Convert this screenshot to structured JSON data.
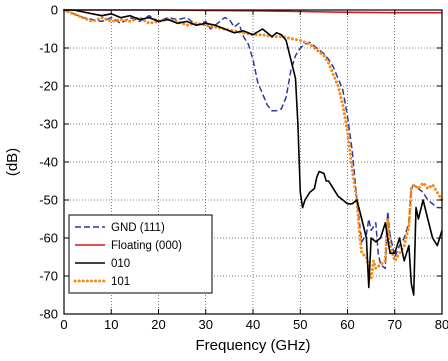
{
  "chart_data": {
    "type": "line",
    "title": "",
    "xlabel": "Frequency (GHz)",
    "ylabel": "(dB)",
    "xlim": [
      0,
      80
    ],
    "ylim": [
      -80,
      0
    ],
    "xticks": [
      0,
      10,
      20,
      30,
      40,
      50,
      60,
      70,
      80
    ],
    "yticks": [
      0,
      -10,
      -20,
      -30,
      -40,
      -50,
      -60,
      -70,
      -80
    ],
    "grid": true,
    "legend_position": "bottom-left",
    "series": [
      {
        "name": "GND (111)",
        "color": "#2b3a9c",
        "style": "dashed",
        "points": [
          [
            0,
            0
          ],
          [
            2,
            -1
          ],
          [
            4,
            -2
          ],
          [
            6,
            -2.5
          ],
          [
            8,
            -3
          ],
          [
            10,
            -2
          ],
          [
            12,
            -3.5
          ],
          [
            14,
            -2
          ],
          [
            16,
            -3
          ],
          [
            18,
            -1.5
          ],
          [
            20,
            -3
          ],
          [
            22,
            -2
          ],
          [
            24,
            -2.5
          ],
          [
            26,
            -2
          ],
          [
            28,
            -4
          ],
          [
            30,
            -3
          ],
          [
            31,
            -5
          ],
          [
            32,
            -4
          ],
          [
            34,
            -2
          ],
          [
            35,
            -2.5
          ],
          [
            36,
            -4.5
          ],
          [
            37,
            -3.5
          ],
          [
            38,
            -7
          ],
          [
            39,
            -9
          ],
          [
            40,
            -13
          ],
          [
            41,
            -19
          ],
          [
            42,
            -22
          ],
          [
            43,
            -25
          ],
          [
            44,
            -26.5
          ],
          [
            45,
            -26.5
          ],
          [
            46,
            -26
          ],
          [
            47,
            -23
          ],
          [
            48,
            -16
          ],
          [
            49,
            -12
          ],
          [
            50,
            -10
          ],
          [
            51,
            -9
          ],
          [
            52,
            -8.5
          ],
          [
            53,
            -9.5
          ],
          [
            54,
            -10.5
          ],
          [
            55,
            -11.5
          ],
          [
            56,
            -13
          ],
          [
            57,
            -15
          ],
          [
            58,
            -18
          ],
          [
            59,
            -21
          ],
          [
            60,
            -28
          ],
          [
            61,
            -37
          ],
          [
            62,
            -50
          ],
          [
            63,
            -61
          ],
          [
            64,
            -59
          ],
          [
            64.5,
            -55
          ],
          [
            65,
            -58
          ],
          [
            66,
            -56
          ],
          [
            66.5,
            -64
          ],
          [
            67,
            -67
          ],
          [
            68,
            -68
          ],
          [
            68.5,
            -53
          ],
          [
            69,
            -59
          ],
          [
            70,
            -65
          ],
          [
            71,
            -62
          ],
          [
            72,
            -60
          ],
          [
            73,
            -56
          ],
          [
            73.5,
            -47
          ],
          [
            74,
            -46
          ],
          [
            75,
            -47
          ],
          [
            76,
            -48
          ],
          [
            77,
            -50
          ],
          [
            78,
            -51
          ],
          [
            79,
            -52
          ],
          [
            80,
            -52
          ]
        ]
      },
      {
        "name": "Floating (000)",
        "color": "#d7191c",
        "style": "solid",
        "points": [
          [
            0,
            0
          ],
          [
            10,
            0
          ],
          [
            20,
            0
          ],
          [
            30,
            -0.1
          ],
          [
            40,
            -0.2
          ],
          [
            50,
            -0.4
          ],
          [
            60,
            -0.6
          ],
          [
            70,
            -0.7
          ],
          [
            80,
            -0.7
          ]
        ]
      },
      {
        "name": "010",
        "color": "#000000",
        "style": "solid",
        "points": [
          [
            0,
            0
          ],
          [
            2,
            0
          ],
          [
            4,
            -0.5
          ],
          [
            6,
            -1
          ],
          [
            8,
            -1.5
          ],
          [
            10,
            -1
          ],
          [
            12,
            -2
          ],
          [
            14,
            -1.5
          ],
          [
            16,
            -2.5
          ],
          [
            18,
            -2
          ],
          [
            20,
            -3
          ],
          [
            22,
            -2.5
          ],
          [
            24,
            -3.5
          ],
          [
            26,
            -3
          ],
          [
            28,
            -4
          ],
          [
            30,
            -3.5
          ],
          [
            32,
            -4
          ],
          [
            34,
            -5
          ],
          [
            36,
            -6
          ],
          [
            38,
            -5.5
          ],
          [
            40,
            -6.5
          ],
          [
            42,
            -5
          ],
          [
            43,
            -6
          ],
          [
            44,
            -7
          ],
          [
            45,
            -6
          ],
          [
            46,
            -6.5
          ],
          [
            47,
            -8
          ],
          [
            48,
            -13
          ],
          [
            49,
            -18
          ],
          [
            49.5,
            -30
          ],
          [
            50,
            -48
          ],
          [
            50.5,
            -52
          ],
          [
            51,
            -50
          ],
          [
            52,
            -48
          ],
          [
            53,
            -47
          ],
          [
            53.5,
            -44
          ],
          [
            54,
            -42.5
          ],
          [
            55,
            -43
          ],
          [
            55.5,
            -45
          ],
          [
            56,
            -45
          ],
          [
            57,
            -47
          ],
          [
            58,
            -49
          ],
          [
            59,
            -50
          ],
          [
            60,
            -51
          ],
          [
            61,
            -51
          ],
          [
            62,
            -50
          ],
          [
            63,
            -55
          ],
          [
            64,
            -60
          ],
          [
            64.5,
            -73
          ],
          [
            65,
            -60
          ],
          [
            66,
            -61
          ],
          [
            67,
            -60
          ],
          [
            68,
            -56
          ],
          [
            69,
            -64
          ],
          [
            70,
            -64
          ],
          [
            71,
            -60
          ],
          [
            72,
            -66
          ],
          [
            73,
            -62
          ],
          [
            73.5,
            -72
          ],
          [
            74,
            -75
          ],
          [
            74.5,
            -52
          ],
          [
            75,
            -55
          ],
          [
            76,
            -50
          ],
          [
            77,
            -55
          ],
          [
            78,
            -60
          ],
          [
            79,
            -62
          ],
          [
            80,
            -58
          ]
        ]
      },
      {
        "name": "101",
        "color": "#f58a1f",
        "style": "dotted",
        "points": [
          [
            0,
            0
          ],
          [
            2,
            -1
          ],
          [
            4,
            -2
          ],
          [
            6,
            -3
          ],
          [
            8,
            -2
          ],
          [
            10,
            -3
          ],
          [
            12,
            -2.5
          ],
          [
            14,
            -3
          ],
          [
            16,
            -2
          ],
          [
            18,
            -3.5
          ],
          [
            20,
            -3
          ],
          [
            22,
            -2.5
          ],
          [
            24,
            -3
          ],
          [
            26,
            -4
          ],
          [
            28,
            -3.5
          ],
          [
            30,
            -4
          ],
          [
            32,
            -4.5
          ],
          [
            34,
            -5
          ],
          [
            36,
            -5.5
          ],
          [
            38,
            -6
          ],
          [
            40,
            -6.5
          ],
          [
            42,
            -6.5
          ],
          [
            44,
            -7
          ],
          [
            46,
            -7
          ],
          [
            48,
            -7.5
          ],
          [
            50,
            -8
          ],
          [
            52,
            -9
          ],
          [
            54,
            -11
          ],
          [
            55,
            -12
          ],
          [
            56,
            -14
          ],
          [
            57,
            -17
          ],
          [
            58,
            -20
          ],
          [
            59,
            -25
          ],
          [
            60,
            -32
          ],
          [
            61,
            -42
          ],
          [
            62,
            -50
          ],
          [
            62.5,
            -58
          ],
          [
            63,
            -64
          ],
          [
            64,
            -65
          ],
          [
            65,
            -71
          ],
          [
            65.5,
            -66
          ],
          [
            66,
            -68
          ],
          [
            67,
            -67
          ],
          [
            68,
            -66
          ],
          [
            68.5,
            -55
          ],
          [
            69,
            -62
          ],
          [
            70,
            -66
          ],
          [
            71,
            -64
          ],
          [
            72,
            -62
          ],
          [
            73,
            -57
          ],
          [
            73.5,
            -47
          ],
          [
            74,
            -46
          ],
          [
            75,
            -47
          ],
          [
            76,
            -45.5
          ],
          [
            77,
            -47
          ],
          [
            78,
            -46
          ],
          [
            79,
            -48
          ],
          [
            80,
            -50
          ]
        ]
      }
    ]
  }
}
